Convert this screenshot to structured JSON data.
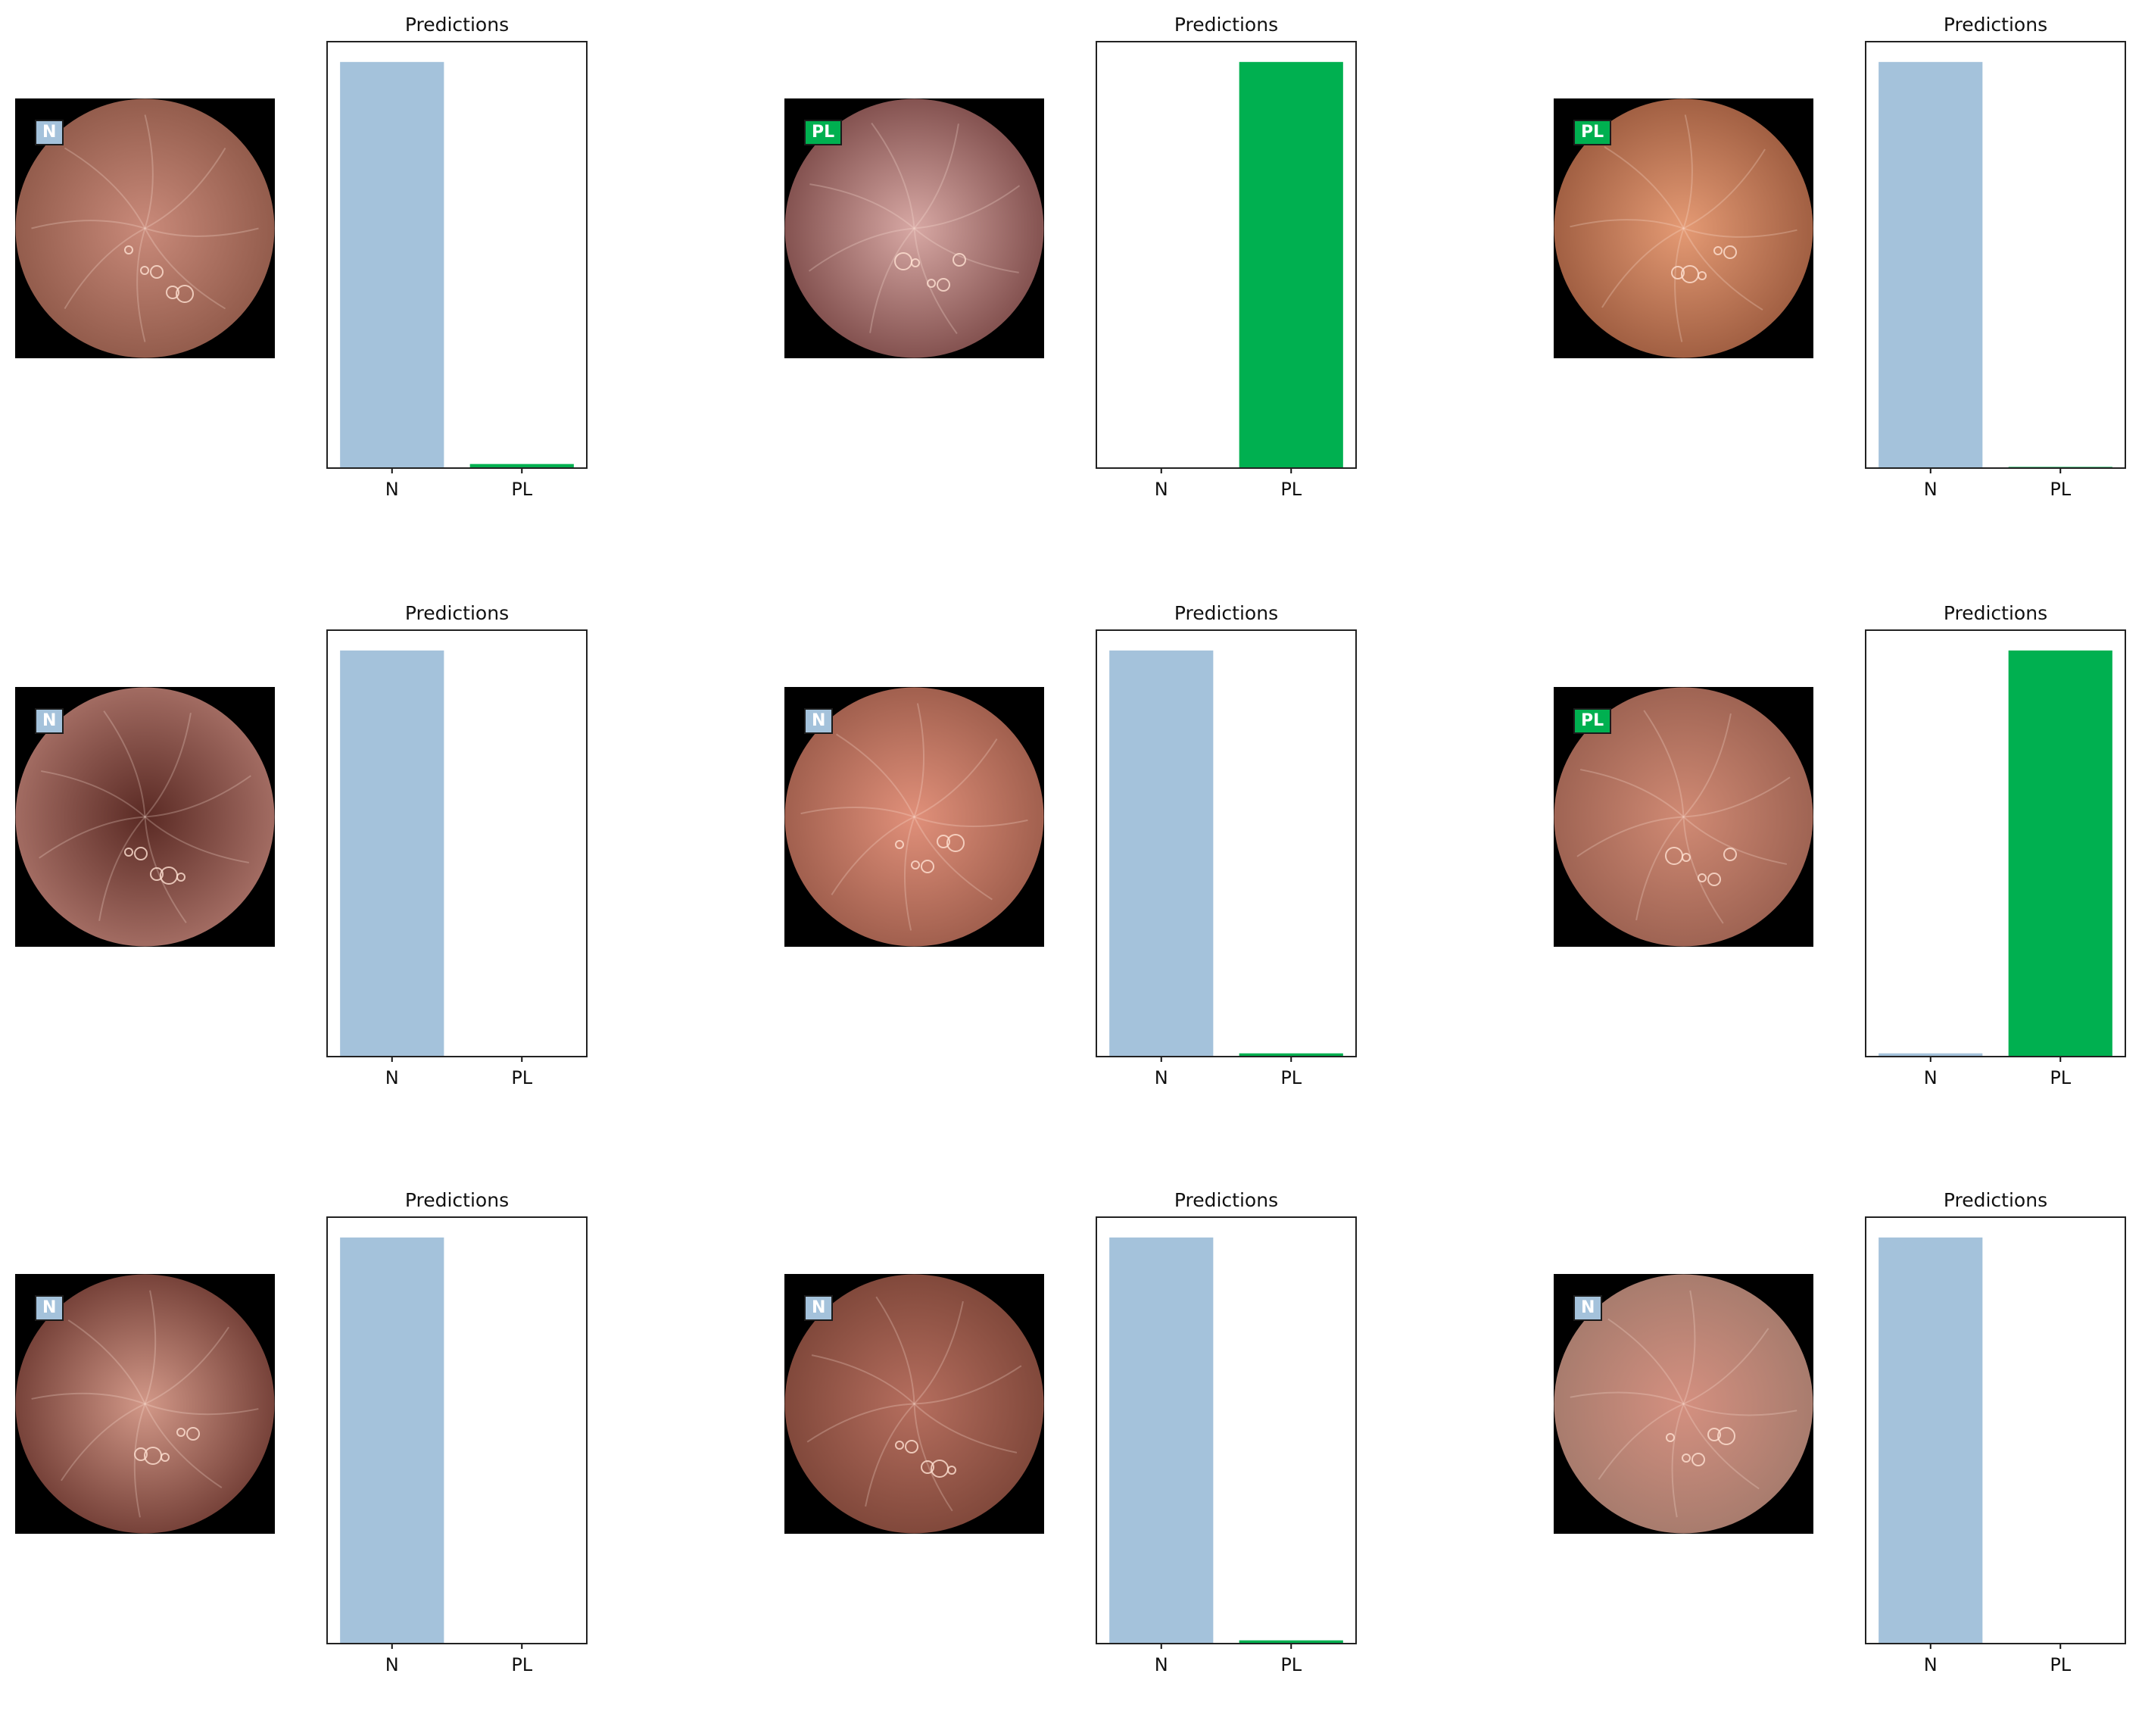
{
  "colors": {
    "N": "#a4c2db",
    "PL": "#00b050",
    "frame": "#222222"
  },
  "panels": [
    {
      "label": "N",
      "image": {
        "tint_center": "#c98a7a",
        "tint_edge": "#8e5848"
      },
      "chart_data": {
        "type": "bar",
        "title": "Predictions",
        "categories": [
          "N",
          "PL"
        ],
        "values": [
          1.0,
          0.01
        ],
        "ylim": [
          0,
          1.05
        ]
      }
    },
    {
      "label": "PL",
      "image": {
        "tint_center": "#d7a8a4",
        "tint_edge": "#7c4a48"
      },
      "chart_data": {
        "type": "bar",
        "title": "Predictions",
        "categories": [
          "N",
          "PL"
        ],
        "values": [
          0.0,
          1.0
        ],
        "ylim": [
          0,
          1.05
        ]
      }
    },
    {
      "label": "PL",
      "image": {
        "tint_center": "#e49a74",
        "tint_edge": "#9b5a3e"
      },
      "chart_data": {
        "type": "bar",
        "title": "Predictions",
        "categories": [
          "N",
          "PL"
        ],
        "values": [
          1.0,
          0.003
        ],
        "ylim": [
          0,
          1.05
        ]
      }
    },
    {
      "label": "N",
      "image": {
        "tint_center": "#5a2a24",
        "tint_edge": "#a97268"
      },
      "chart_data": {
        "type": "bar",
        "title": "Predictions",
        "categories": [
          "N",
          "PL"
        ],
        "values": [
          1.0,
          0.0
        ],
        "ylim": [
          0,
          1.05
        ]
      }
    },
    {
      "label": "N",
      "image": {
        "tint_center": "#e0907a",
        "tint_edge": "#9b5b4a"
      },
      "chart_data": {
        "type": "bar",
        "title": "Predictions",
        "categories": [
          "N",
          "PL"
        ],
        "values": [
          1.0,
          0.008
        ],
        "ylim": [
          0,
          1.05
        ]
      }
    },
    {
      "label": "PL",
      "image": {
        "tint_center": "#d08a74",
        "tint_edge": "#9a6050"
      },
      "chart_data": {
        "type": "bar",
        "title": "Predictions",
        "categories": [
          "N",
          "PL"
        ],
        "values": [
          0.008,
          1.0
        ],
        "ylim": [
          0,
          1.05
        ]
      }
    },
    {
      "label": "N",
      "image": {
        "tint_center": "#d29888",
        "tint_edge": "#6e3a32"
      },
      "chart_data": {
        "type": "bar",
        "title": "Predictions",
        "categories": [
          "N",
          "PL"
        ],
        "values": [
          1.0,
          0.0
        ],
        "ylim": [
          0,
          1.05
        ]
      }
    },
    {
      "label": "N",
      "image": {
        "tint_center": "#b56e5e",
        "tint_edge": "#7c4538"
      },
      "chart_data": {
        "type": "bar",
        "title": "Predictions",
        "categories": [
          "N",
          "PL"
        ],
        "values": [
          1.0,
          0.008
        ],
        "ylim": [
          0,
          1.05
        ]
      }
    },
    {
      "label": "N",
      "image": {
        "tint_center": "#d49080",
        "tint_edge": "#a47a6c"
      },
      "chart_data": {
        "type": "bar",
        "title": "Predictions",
        "categories": [
          "N",
          "PL"
        ],
        "values": [
          1.0,
          0.0
        ],
        "ylim": [
          0,
          1.05
        ]
      }
    }
  ]
}
